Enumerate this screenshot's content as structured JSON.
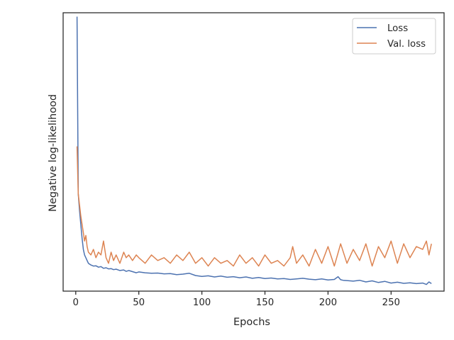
{
  "chart_data": {
    "type": "line",
    "title": "",
    "xlabel": "Epochs",
    "ylabel": "Negative log-likelihood",
    "xlim": [
      -10,
      292
    ],
    "ylim": [
      0,
      1
    ],
    "xticks": [
      0,
      50,
      100,
      150,
      200,
      250
    ],
    "y_tick_labels_shown": false,
    "grid": false,
    "legend_position": "top-right",
    "series": [
      {
        "name": "Loss",
        "color": "#4c72b0",
        "x": [
          1,
          2,
          3,
          4,
          5,
          6,
          7,
          8,
          9,
          10,
          12,
          14,
          16,
          18,
          20,
          22,
          24,
          26,
          28,
          30,
          32,
          35,
          38,
          40,
          42,
          45,
          48,
          50,
          55,
          60,
          65,
          70,
          75,
          80,
          85,
          90,
          95,
          100,
          105,
          110,
          115,
          120,
          125,
          130,
          135,
          140,
          145,
          150,
          155,
          160,
          165,
          170,
          175,
          180,
          185,
          190,
          195,
          200,
          205,
          208,
          210,
          212,
          215,
          220,
          225,
          230,
          235,
          240,
          245,
          250,
          255,
          260,
          265,
          270,
          275,
          278,
          280,
          282
        ],
        "values": [
          0.986,
          0.35,
          0.29,
          0.24,
          0.19,
          0.15,
          0.13,
          0.12,
          0.11,
          0.1,
          0.094,
          0.09,
          0.091,
          0.086,
          0.088,
          0.082,
          0.084,
          0.08,
          0.081,
          0.077,
          0.079,
          0.074,
          0.076,
          0.071,
          0.074,
          0.07,
          0.066,
          0.069,
          0.066,
          0.064,
          0.065,
          0.062,
          0.063,
          0.059,
          0.061,
          0.064,
          0.056,
          0.053,
          0.055,
          0.051,
          0.054,
          0.05,
          0.052,
          0.048,
          0.051,
          0.046,
          0.049,
          0.045,
          0.047,
          0.044,
          0.045,
          0.042,
          0.044,
          0.046,
          0.043,
          0.041,
          0.044,
          0.04,
          0.042,
          0.052,
          0.041,
          0.039,
          0.038,
          0.036,
          0.039,
          0.033,
          0.037,
          0.031,
          0.035,
          0.029,
          0.032,
          0.028,
          0.03,
          0.027,
          0.029,
          0.024,
          0.033,
          0.027
        ]
      },
      {
        "name": "Val. loss",
        "color": "#dd8452",
        "x": [
          1,
          2,
          3,
          4,
          5,
          6,
          7,
          8,
          9,
          10,
          12,
          14,
          16,
          18,
          20,
          22,
          24,
          26,
          28,
          30,
          32,
          35,
          38,
          40,
          42,
          45,
          48,
          50,
          55,
          60,
          65,
          70,
          75,
          80,
          85,
          90,
          95,
          100,
          105,
          110,
          115,
          120,
          125,
          130,
          135,
          140,
          145,
          150,
          155,
          160,
          165,
          170,
          172,
          175,
          180,
          185,
          190,
          195,
          200,
          205,
          210,
          215,
          220,
          225,
          230,
          235,
          240,
          245,
          250,
          255,
          260,
          265,
          270,
          275,
          278,
          280,
          282
        ],
        "values": [
          0.52,
          0.35,
          0.31,
          0.27,
          0.24,
          0.21,
          0.18,
          0.2,
          0.16,
          0.14,
          0.13,
          0.15,
          0.12,
          0.14,
          0.13,
          0.18,
          0.12,
          0.1,
          0.14,
          0.11,
          0.13,
          0.1,
          0.14,
          0.12,
          0.13,
          0.11,
          0.13,
          0.12,
          0.1,
          0.13,
          0.11,
          0.12,
          0.1,
          0.13,
          0.11,
          0.14,
          0.1,
          0.12,
          0.09,
          0.12,
          0.1,
          0.11,
          0.09,
          0.13,
          0.1,
          0.12,
          0.09,
          0.13,
          0.1,
          0.11,
          0.09,
          0.12,
          0.16,
          0.1,
          0.13,
          0.09,
          0.15,
          0.1,
          0.16,
          0.09,
          0.17,
          0.1,
          0.15,
          0.11,
          0.17,
          0.09,
          0.16,
          0.12,
          0.18,
          0.1,
          0.17,
          0.12,
          0.16,
          0.15,
          0.18,
          0.13,
          0.17
        ]
      }
    ]
  }
}
